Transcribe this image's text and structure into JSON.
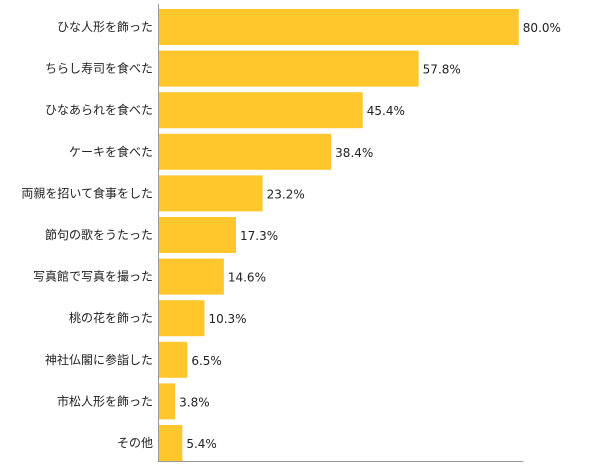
{
  "chart_data": {
    "type": "bar",
    "orientation": "horizontal",
    "title": "",
    "xlabel": "",
    "ylabel": "",
    "categories": [
      "ひな人形を飾った",
      "ちらし寿司を食べた",
      "ひなあられを食べた",
      "ケーキを食べた",
      "両親を招いて食事をした",
      "節句の歌をうたった",
      "写真館で写真を撮った",
      "桃の花を飾った",
      "神社仏閣に参詣した",
      "市松人形を飾った",
      "その他"
    ],
    "values": [
      80.0,
      57.8,
      45.4,
      38.4,
      23.2,
      17.3,
      14.6,
      10.3,
      6.5,
      3.8,
      5.4
    ],
    "value_labels": [
      "80.0%",
      "57.8%",
      "45.4%",
      "38.4%",
      "23.2%",
      "17.3%",
      "14.6%",
      "10.3%",
      "6.5%",
      "3.8%",
      "5.4%"
    ],
    "xlim": [
      0,
      100
    ],
    "bar_color": "#FFC72C",
    "axis_color": "#999999",
    "grid": false,
    "legend": "none"
  }
}
